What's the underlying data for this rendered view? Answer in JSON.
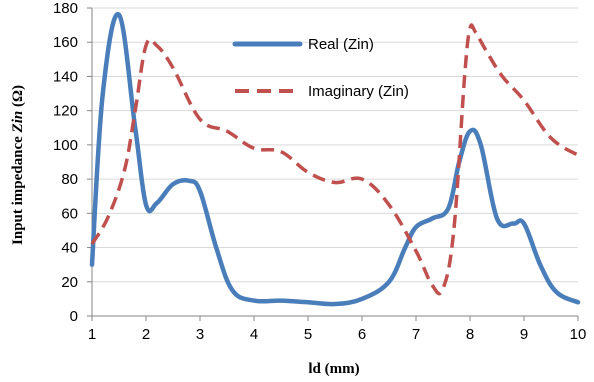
{
  "chart_data": {
    "type": "line",
    "title": "",
    "xlabel": "ld (mm)",
    "ylabel": "Input impedance Zin (Ω)",
    "ylabel_parts": {
      "prefix": "Input impedance ",
      "italic": "Zin",
      "suffix": " (Ω)"
    },
    "xlim": [
      1,
      10
    ],
    "ylim": [
      0,
      180
    ],
    "x_ticks": [
      1,
      2,
      3,
      4,
      5,
      6,
      7,
      8,
      9,
      10
    ],
    "y_ticks": [
      0,
      20,
      40,
      60,
      80,
      100,
      120,
      140,
      160,
      180
    ],
    "grid": "horizontal",
    "legend_position": "top-right",
    "series": [
      {
        "name": "Real (Zin)",
        "color": "#4a7ebb",
        "style": "solid",
        "x": [
          1,
          1.2,
          1.5,
          1.8,
          2.0,
          2.2,
          2.5,
          2.8,
          3.0,
          3.3,
          3.6,
          4.0,
          4.5,
          5.0,
          5.5,
          6.0,
          6.5,
          6.8,
          7.0,
          7.3,
          7.6,
          7.8,
          8.0,
          8.2,
          8.5,
          8.8,
          9.0,
          9.3,
          9.6,
          10.0
        ],
        "y": [
          30,
          130,
          176,
          110,
          65,
          66,
          77,
          79,
          73,
          40,
          15,
          9,
          9,
          8,
          7,
          10,
          20,
          40,
          52,
          57,
          63,
          90,
          108,
          100,
          57,
          54,
          54,
          30,
          14,
          8
        ]
      },
      {
        "name": "Imaginary (Zin)",
        "color": "#c0504d",
        "style": "dashed",
        "x": [
          1,
          1.3,
          1.6,
          1.8,
          2.0,
          2.2,
          2.5,
          3.0,
          3.5,
          4.0,
          4.5,
          5.0,
          5.5,
          6.0,
          6.5,
          7.0,
          7.3,
          7.5,
          7.7,
          7.9,
          8.0,
          8.1,
          8.3,
          8.6,
          9.0,
          9.5,
          10.0
        ],
        "y": [
          42,
          58,
          85,
          120,
          158,
          158,
          145,
          115,
          108,
          98,
          96,
          84,
          78,
          80,
          65,
          38,
          18,
          16,
          50,
          140,
          168,
          166,
          155,
          140,
          126,
          104,
          94
        ]
      }
    ]
  }
}
